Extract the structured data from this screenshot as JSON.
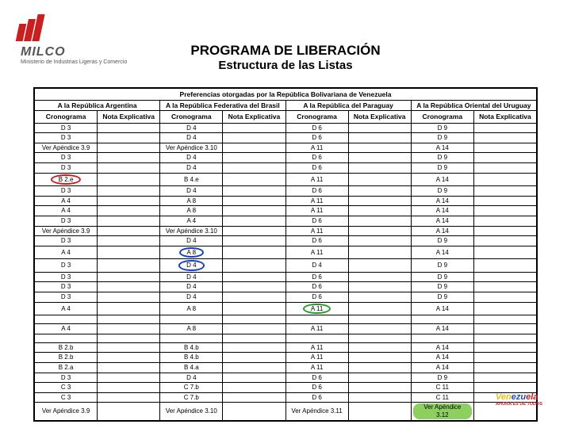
{
  "logo": {
    "brand": "MILCO",
    "subtitle": "Ministerio de Industrias Ligeras\ny Comercio"
  },
  "title": {
    "line1": "PROGRAMA DE LIBERACIÓN",
    "line2": "Estructura de las Listas"
  },
  "table": {
    "mainHeader": "Preferencias otorgadas por la República Bolivariana de Venezuela",
    "subHeaders": [
      "A la República Argentina",
      "A la República Federativa del Brasil",
      "A la República del Paraguay",
      "A la República Oriental del Uruguay"
    ],
    "colHeaders": [
      "Cronograma",
      "Nota Explicativa"
    ],
    "rows": [
      {
        "c1": "D 3",
        "c2": "D 4",
        "c3": "D 6",
        "c4": "D 9"
      },
      {
        "c1": "D 3",
        "c2": "D 4",
        "c3": "D 6",
        "c4": "D 9"
      },
      {
        "c1": "Ver Apéndice 3.9",
        "c2": "Ver Apéndice 3.10",
        "c3": "A 11",
        "c4": "A 14"
      },
      {
        "c1": "D 3",
        "c2": "D 4",
        "c3": "D 6",
        "c4": "D 9"
      },
      {
        "c1": "D 3",
        "c2": "D 4",
        "c3": "D 6",
        "c4": "D 9"
      },
      {
        "c1": "B 2.e",
        "c1_circle": "red",
        "c2": "B 4.e",
        "c3": "A 11",
        "c4": "A 14"
      },
      {
        "c1": "D 3",
        "c2": "D 4",
        "c3": "D 6",
        "c4": "D 9"
      },
      {
        "c1": "A 4",
        "c2": "A 8",
        "c3": "A 11",
        "c4": "A 14"
      },
      {
        "c1": "A 4",
        "c2": "A 8",
        "c3": "A 11",
        "c4": "A 14"
      },
      {
        "c1": "D 3",
        "c2": "A 4",
        "c3": "D 6",
        "c4": "A 14"
      },
      {
        "c1": "Ver Apéndice 3.9",
        "c2": "Ver Apéndice 3.10",
        "c3": "A 11",
        "c4": "A 14"
      },
      {
        "c1": "D 3",
        "c2": "D 4",
        "c3": "D 6",
        "c4": "D 9"
      },
      {
        "c1": "A 4",
        "c2": "A 8",
        "c2_circle": "blue",
        "c3": "A 11",
        "c4": "A 14"
      },
      {
        "c1": "D 3",
        "c2": "D 4",
        "c2_circle": "blue",
        "c3": "D 4",
        "c4": "D 9"
      },
      {
        "c1": "D 3",
        "c2": "D 4",
        "c3": "D 6",
        "c4": "D 9"
      },
      {
        "c1": "D 3",
        "c2": "D 4",
        "c3": "D 6",
        "c4": "D 9"
      },
      {
        "c1": "D 3",
        "c2": "D 4",
        "c3": "D 6",
        "c4": "D 9"
      },
      {
        "c1": "A 4",
        "c2": "A 8",
        "c3": "A 11",
        "c3_circle": "green",
        "c4": "A 14"
      },
      {
        "c1": "",
        "c2": "",
        "c3": "",
        "c4": "",
        "blank": true
      },
      {
        "c1": "A 4",
        "c2": "A 8",
        "c3": "A 11",
        "c4": "A 14"
      },
      {
        "c1": "",
        "c2": "",
        "c3": "",
        "c4": "",
        "blank": true
      },
      {
        "c1": "B 2.b",
        "c2": "B 4.b",
        "c3": "A 11",
        "c4": "A 14"
      },
      {
        "c1": "B 2.b",
        "c2": "B 4.b",
        "c3": "A 11",
        "c4": "A 14"
      },
      {
        "c1": "B 2.a",
        "c2": "B 4.a",
        "c3": "A 11",
        "c4": "A 14"
      },
      {
        "c1": "D 3",
        "c2": "D 4",
        "c3": "D 6",
        "c4": "D 9"
      },
      {
        "c1": "C 3",
        "c2": "C 7.b",
        "c3": "D 6",
        "c4": "C 11"
      },
      {
        "c1": "C 3",
        "c2": "C 7.b",
        "c3": "D 6",
        "c4": "C 11"
      },
      {
        "c1": "Ver Apéndice 3.9",
        "c2": "Ver Apéndice 3.10",
        "c3": "Ver Apéndice 3.11",
        "c4": "Ver Apéndice 3.12",
        "c4_hl": true
      }
    ]
  },
  "footer": {
    "vz_prefix": "Ven",
    "vz_mid": "ezu",
    "vz_end": "ela",
    "sub": "AHORA ES DE TODOS"
  }
}
